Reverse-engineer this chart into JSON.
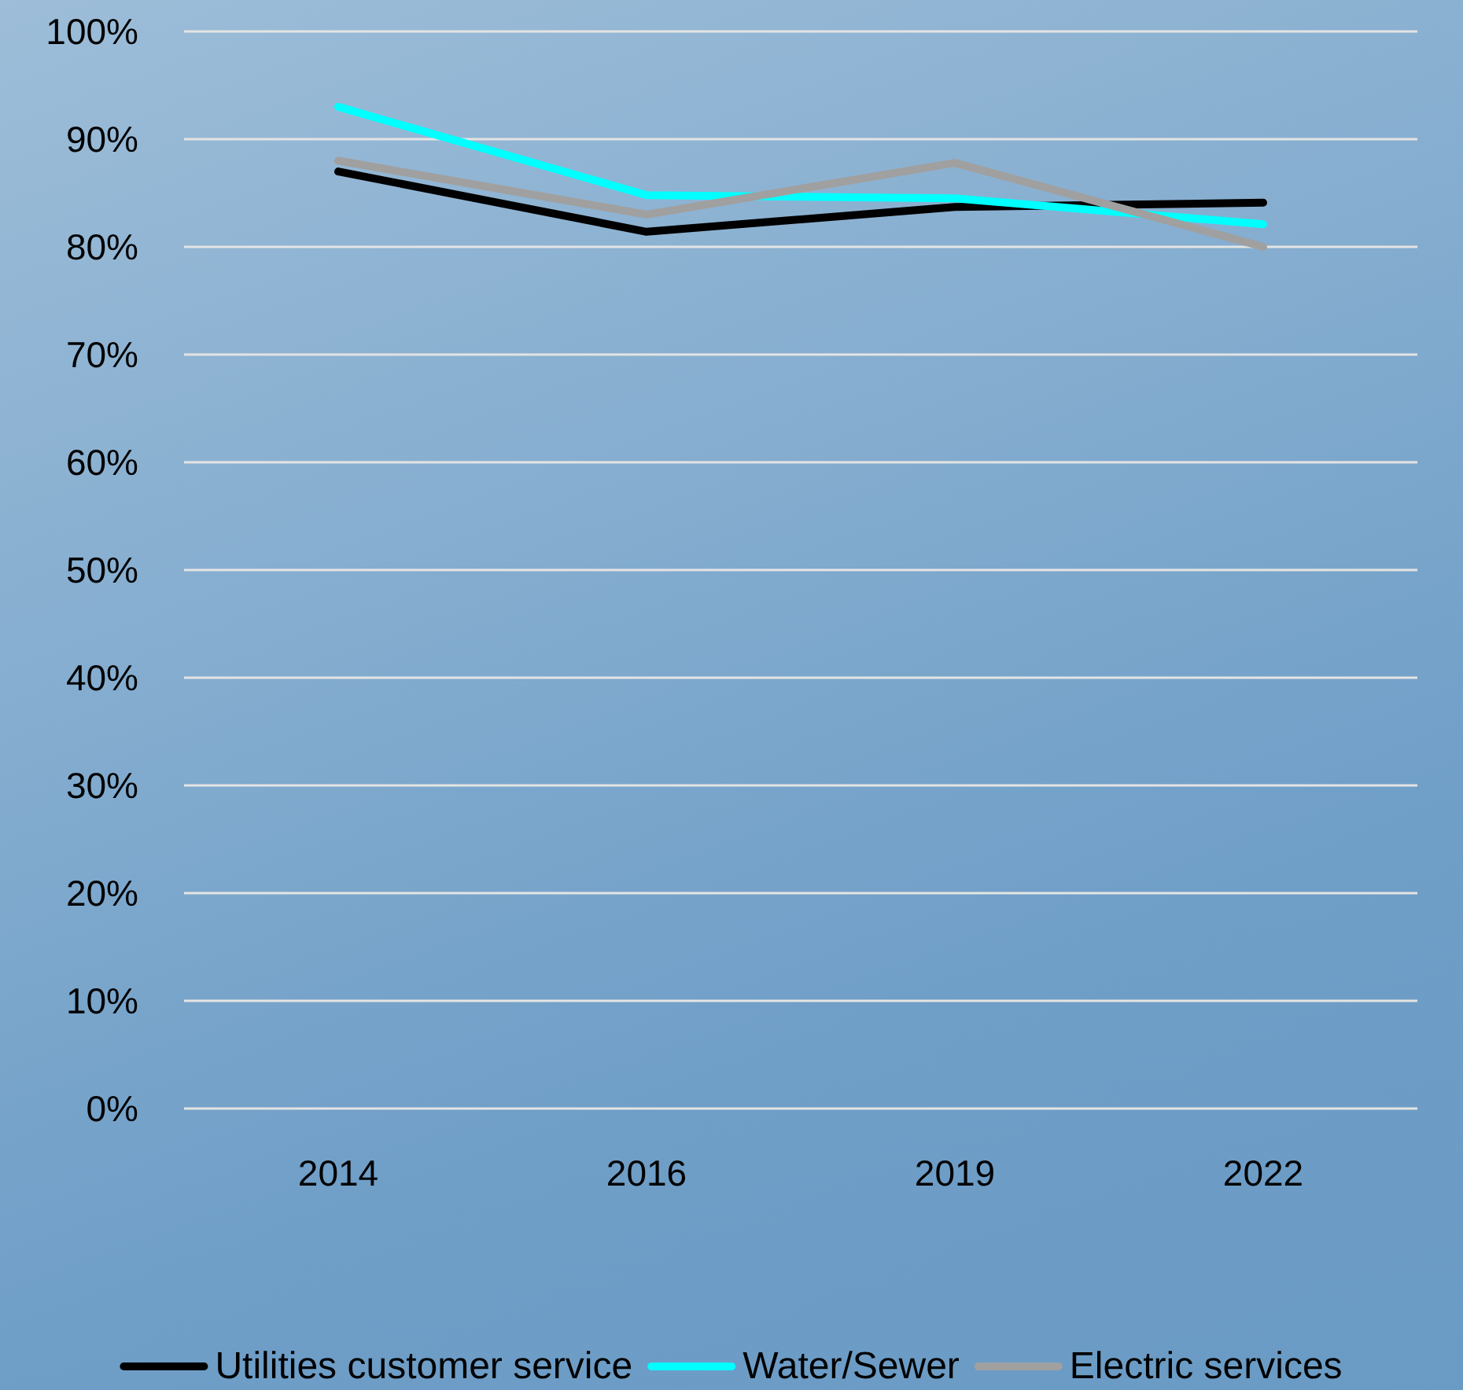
{
  "chart_data": {
    "type": "line",
    "categories": [
      "2014",
      "2016",
      "2019",
      "2022"
    ],
    "series": [
      {
        "name": "Utilities customer service",
        "color": "#000000",
        "values": [
          87,
          81.4,
          83.7,
          84.1
        ]
      },
      {
        "name": "Water/Sewer",
        "color": "#00ffff",
        "values": [
          93,
          84.8,
          84.5,
          82.1
        ]
      },
      {
        "name": "Electric services",
        "color": "#a0a0a0",
        "values": [
          88,
          83,
          87.8,
          80
        ]
      }
    ],
    "ylim": [
      0,
      100
    ],
    "yticks": [
      {
        "value": 0,
        "label": "0%"
      },
      {
        "value": 10,
        "label": "10%"
      },
      {
        "value": 20,
        "label": "20%"
      },
      {
        "value": 30,
        "label": "30%"
      },
      {
        "value": 40,
        "label": "40%"
      },
      {
        "value": 50,
        "label": "50%"
      },
      {
        "value": 60,
        "label": "60%"
      },
      {
        "value": 70,
        "label": "70%"
      },
      {
        "value": 80,
        "label": "80%"
      },
      {
        "value": 90,
        "label": "90%"
      },
      {
        "value": 100,
        "label": "100%"
      }
    ],
    "grid": "y",
    "legend": "bottom"
  }
}
